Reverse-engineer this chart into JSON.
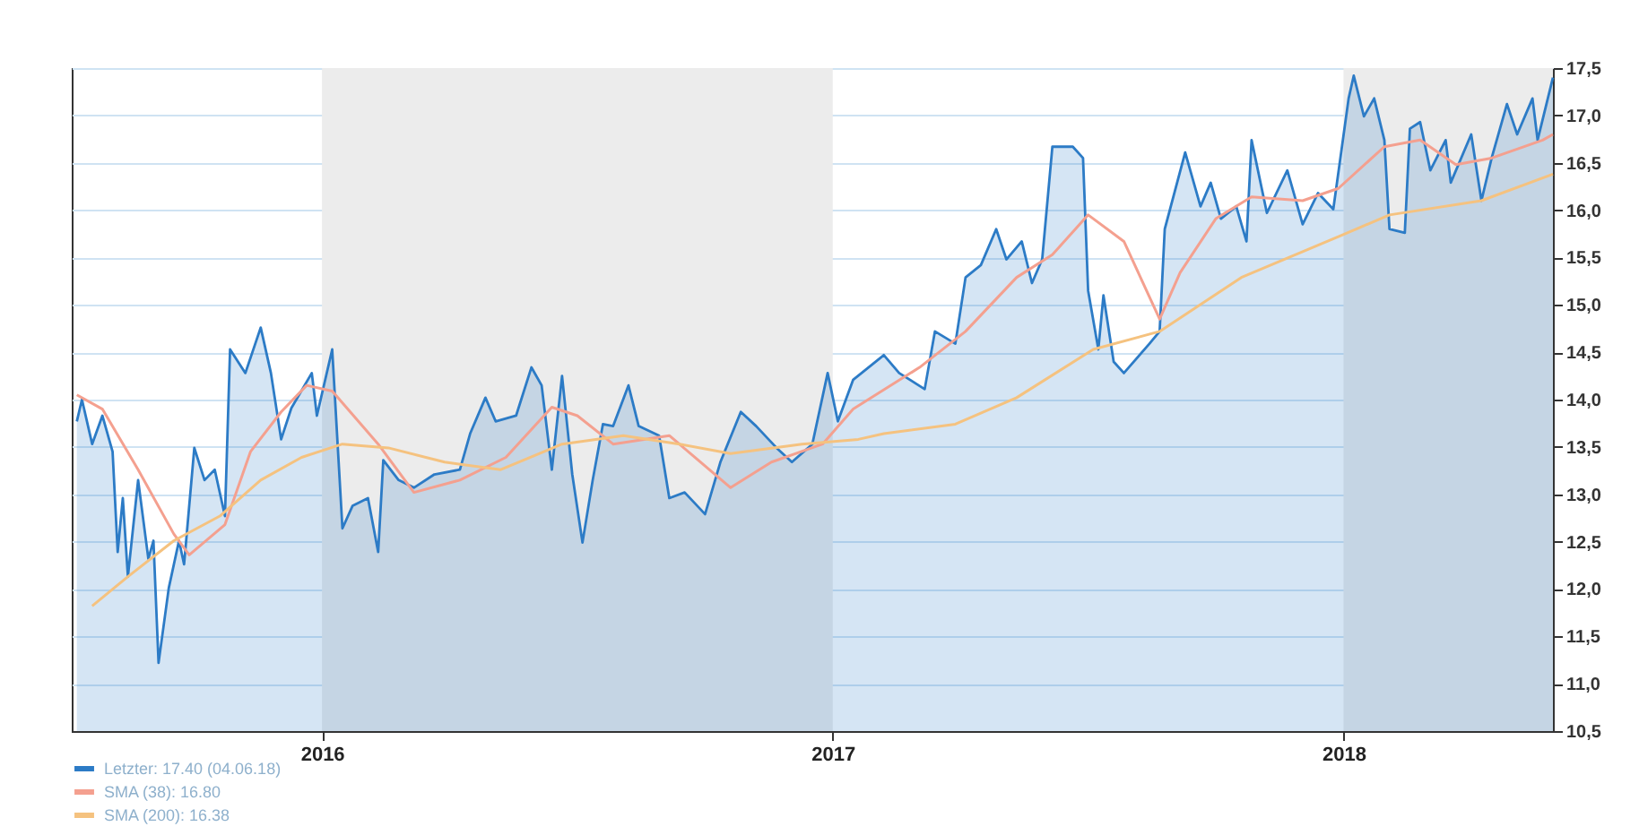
{
  "chart_data": {
    "type": "line",
    "xlim": [
      2015.51,
      2018.41
    ],
    "xticks": [
      2016,
      2017,
      2018
    ],
    "ylim": [
      10.5,
      17.5
    ],
    "yticks": [
      {
        "value": 10.5,
        "label": "10,5"
      },
      {
        "value": 11,
        "label": "11,0"
      },
      {
        "value": 11.5,
        "label": "11,5"
      },
      {
        "value": 12,
        "label": "12,0"
      },
      {
        "value": 12.5,
        "label": "12,5"
      },
      {
        "value": 13,
        "label": "13,0"
      },
      {
        "value": 13.5,
        "label": "13,5"
      },
      {
        "value": 14,
        "label": "14,0"
      },
      {
        "value": 14.5,
        "label": "14,5"
      },
      {
        "value": 15,
        "label": "15,0"
      },
      {
        "value": 15.5,
        "label": "15,5"
      },
      {
        "value": 16,
        "label": "16,0"
      },
      {
        "value": 16.5,
        "label": "16,5"
      },
      {
        "value": 17,
        "label": "17,0"
      },
      {
        "value": 17.5,
        "label": "17,5"
      }
    ],
    "grid": "y",
    "legend": "bottom left",
    "bands": [
      {
        "axis": "x",
        "from": 2016,
        "to": 2017,
        "color": "#ececec"
      },
      {
        "axis": "x",
        "from": 2018,
        "to": 2018.41,
        "color": "#ececec"
      }
    ],
    "series": [
      {
        "name": "Letzter: 17.40 (04.06.18)",
        "type": "area",
        "color": "#2c7bc6",
        "x": [
          2015.52,
          2015.53,
          2015.55,
          2015.57,
          2015.59,
          2015.6,
          2015.61,
          2015.62,
          2015.64,
          2015.66,
          2015.67,
          2015.68,
          2015.7,
          2015.72,
          2015.73,
          2015.75,
          2015.77,
          2015.79,
          2015.81,
          2015.82,
          2015.85,
          2015.88,
          2015.9,
          2015.92,
          2015.94,
          2015.98,
          2015.99,
          2016.02,
          2016.04,
          2016.06,
          2016.09,
          2016.11,
          2016.12,
          2016.15,
          2016.18,
          2016.22,
          2016.27,
          2016.29,
          2016.32,
          2016.34,
          2016.38,
          2016.41,
          2016.43,
          2016.45,
          2016.47,
          2016.49,
          2016.51,
          2016.53,
          2016.55,
          2016.57,
          2016.6,
          2016.62,
          2016.66,
          2016.68,
          2016.71,
          2016.75,
          2016.78,
          2016.82,
          2016.85,
          2016.89,
          2016.92,
          2016.96,
          2016.99,
          2017.01,
          2017.04,
          2017.1,
          2017.13,
          2017.18,
          2017.2,
          2017.24,
          2017.26,
          2017.29,
          2017.32,
          2017.34,
          2017.37,
          2017.39,
          2017.41,
          2017.43,
          2017.47,
          2017.49,
          2017.5,
          2017.52,
          2017.53,
          2017.55,
          2017.57,
          2017.62,
          2017.64,
          2017.65,
          2017.69,
          2017.72,
          2017.74,
          2017.76,
          2017.79,
          2017.81,
          2017.82,
          2017.85,
          2017.89,
          2017.92,
          2017.95,
          2017.98,
          2018.01,
          2018.02,
          2018.04,
          2018.06,
          2018.08,
          2018.09,
          2018.12,
          2018.13,
          2018.15,
          2018.17,
          2018.2,
          2018.21,
          2018.25,
          2018.27,
          2018.29,
          2018.32,
          2018.34,
          2018.37,
          2018.38,
          2018.41
        ],
        "values": [
          13.77,
          14.0,
          13.53,
          13.83,
          13.45,
          12.39,
          12.96,
          12.13,
          13.15,
          12.32,
          12.51,
          11.22,
          12.01,
          12.51,
          12.26,
          13.49,
          13.15,
          13.26,
          12.77,
          14.53,
          14.28,
          14.76,
          14.28,
          13.58,
          13.91,
          14.28,
          13.83,
          14.53,
          12.64,
          12.88,
          12.96,
          12.39,
          13.36,
          13.15,
          13.07,
          13.21,
          13.26,
          13.64,
          14.02,
          13.77,
          13.83,
          14.34,
          14.15,
          13.26,
          14.25,
          13.21,
          12.49,
          13.15,
          13.74,
          13.72,
          14.15,
          13.72,
          13.62,
          12.96,
          13.02,
          12.79,
          13.34,
          13.87,
          13.72,
          13.49,
          13.34,
          13.53,
          14.28,
          13.77,
          14.21,
          14.47,
          14.28,
          14.11,
          14.72,
          14.59,
          15.29,
          15.42,
          15.8,
          15.48,
          15.67,
          15.23,
          15.48,
          16.67,
          16.67,
          16.55,
          15.15,
          14.53,
          15.1,
          14.4,
          14.28,
          14.59,
          14.72,
          15.8,
          16.61,
          16.04,
          16.29,
          15.91,
          16.04,
          15.67,
          16.74,
          15.97,
          16.42,
          15.85,
          16.18,
          16.01,
          17.18,
          17.42,
          16.99,
          17.18,
          16.74,
          15.8,
          15.76,
          16.86,
          16.93,
          16.42,
          16.74,
          16.29,
          16.8,
          16.1,
          16.55,
          17.12,
          16.8,
          17.18,
          16.74,
          17.4
        ]
      },
      {
        "name": "SMA (38): 16.80",
        "color": "#f4a08f",
        "x": [
          2015.52,
          2015.57,
          2015.64,
          2015.71,
          2015.74,
          2015.81,
          2015.86,
          2015.92,
          2015.97,
          2016.02,
          2016.11,
          2016.18,
          2016.27,
          2016.36,
          2016.45,
          2016.5,
          2016.57,
          2016.68,
          2016.8,
          2016.88,
          2016.98,
          2017.04,
          2017.17,
          2017.26,
          2017.36,
          2017.43,
          2017.5,
          2017.57,
          2017.64,
          2017.68,
          2017.75,
          2017.82,
          2017.92,
          2017.99,
          2018.08,
          2018.15,
          2018.22,
          2018.29,
          2018.39,
          2018.41
        ],
        "values": [
          14.05,
          13.9,
          13.26,
          12.58,
          12.36,
          12.68,
          13.45,
          13.87,
          14.15,
          14.09,
          13.53,
          13.02,
          13.15,
          13.39,
          13.92,
          13.83,
          13.53,
          13.62,
          13.07,
          13.34,
          13.53,
          13.9,
          14.34,
          14.72,
          15.29,
          15.53,
          15.95,
          15.67,
          14.85,
          15.34,
          15.91,
          16.14,
          16.1,
          16.23,
          16.67,
          16.74,
          16.48,
          16.55,
          16.74,
          16.8
        ]
      },
      {
        "name": "SMA (200): 16.38",
        "color": "#f5c27f",
        "x": [
          2015.55,
          2015.62,
          2015.71,
          2015.8,
          2015.88,
          2015.96,
          2016.04,
          2016.13,
          2016.24,
          2016.35,
          2016.47,
          2016.59,
          2016.7,
          2016.8,
          2016.94,
          2017.05,
          2017.1,
          2017.24,
          2017.36,
          2017.51,
          2017.64,
          2017.8,
          2017.99,
          2018.09,
          2018.27,
          2018.41
        ],
        "values": [
          11.82,
          12.13,
          12.51,
          12.77,
          13.15,
          13.39,
          13.53,
          13.49,
          13.34,
          13.26,
          13.53,
          13.62,
          13.53,
          13.43,
          13.53,
          13.58,
          13.64,
          13.74,
          14.02,
          14.53,
          14.72,
          15.29,
          15.72,
          15.95,
          16.1,
          16.38
        ]
      }
    ]
  }
}
